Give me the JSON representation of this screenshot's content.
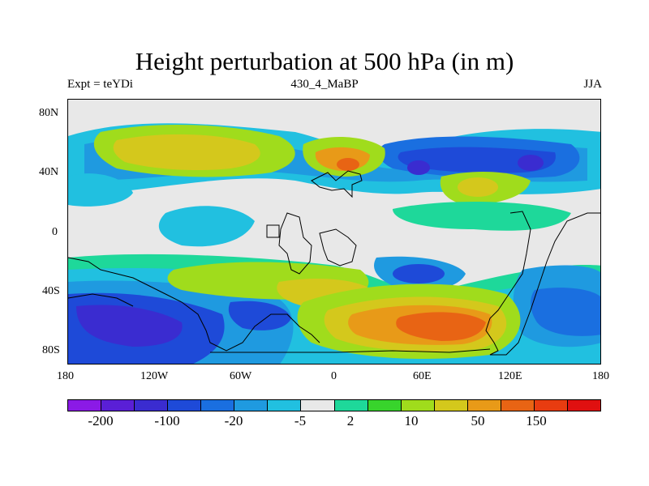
{
  "title": "Height perturbation at 500 hPa (in m)",
  "subtitle_left": "Expt = teYDi",
  "subtitle_center": "430_4_MaBP",
  "subtitle_right": "JJA",
  "x_ticks": [
    "180",
    "120W",
    "60W",
    "0",
    "60E",
    "120E",
    "180"
  ],
  "y_ticks": [
    "80N",
    "40N",
    "0",
    "40S",
    "80S"
  ],
  "colorbar": {
    "colors": [
      "#8b1ae6",
      "#5a1fd6",
      "#3a2cd0",
      "#1e4ad8",
      "#1a6fe0",
      "#1f9ae0",
      "#21c0e0",
      "#e8e8e8",
      "#1ed89a",
      "#38d42c",
      "#a0dc1c",
      "#d4c81c",
      "#e89a18",
      "#e86414",
      "#e83c10",
      "#e01010"
    ],
    "labels": [
      "-200",
      "-100",
      "-20",
      "-5",
      "2",
      "10",
      "50",
      "150"
    ]
  }
}
